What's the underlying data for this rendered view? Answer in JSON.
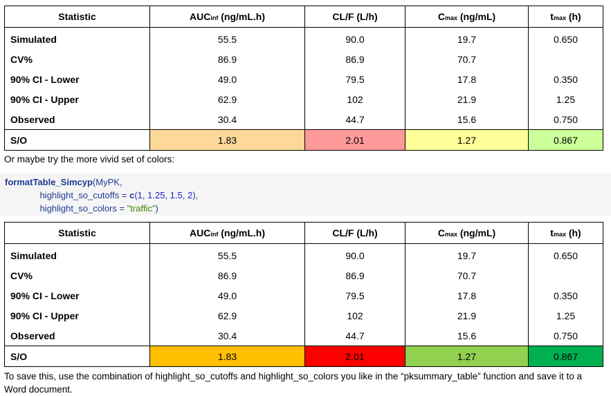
{
  "headers": {
    "statistic": "Statistic",
    "auc_main": "AUC",
    "auc_sub": "inf",
    "auc_unit": " (ng/mL.h)",
    "clf": "CL/F (L/h)",
    "cmax_main": "C",
    "cmax_sub": "max",
    "cmax_unit": " (ng/mL)",
    "tmax_main": "t",
    "tmax_sub": "max",
    "tmax_unit": " (h)"
  },
  "rows": [
    {
      "label": "Simulated",
      "auc": "55.5",
      "clf": "90.0",
      "cmax": "19.7",
      "tmax": "0.650"
    },
    {
      "label": "CV%",
      "auc": "86.9",
      "clf": "86.9",
      "cmax": "70.7",
      "tmax": ""
    },
    {
      "label": "90% CI - Lower",
      "auc": "49.0",
      "clf": "79.5",
      "cmax": "17.8",
      "tmax": "0.350"
    },
    {
      "label": "90% CI - Upper",
      "auc": "62.9",
      "clf": "102",
      "cmax": "21.9",
      "tmax": "1.25"
    },
    {
      "label": "Observed",
      "auc": "30.4",
      "clf": "44.7",
      "cmax": "15.6",
      "tmax": "0.750"
    }
  ],
  "so_row": {
    "label": "S/O",
    "auc": "1.83",
    "clf": "2.01",
    "cmax": "1.27",
    "tmax": "0.867"
  },
  "colors": {
    "table1": {
      "auc": "#fdd999",
      "clf": "#fd9999",
      "cmax": "#ffff99",
      "tmax": "#ccff99"
    },
    "table2": {
      "auc": "#ffc000",
      "clf": "#ff0000",
      "cmax": "#92d050",
      "tmax": "#00b050"
    }
  },
  "note1": "Or maybe try the more vivid set of colors:",
  "code": {
    "fn": "formatTable_Simcyp",
    "open": "(MyPK,",
    "arg1": "highlight_so_cutoffs = ",
    "c_fn": "c",
    "c_open": "(",
    "n1": "1",
    "n2": "1.25",
    "n3": "1.5",
    "n4": "2",
    "c_close": "),",
    "arg2": "highlight_so_colors = ",
    "str": "\"traffic\"",
    "close": ")"
  },
  "note2": "To save this, use the combination of highlight_so_cutoffs and highlight_so_colors you like in the “pksummary_table” function and save it to a Word document."
}
